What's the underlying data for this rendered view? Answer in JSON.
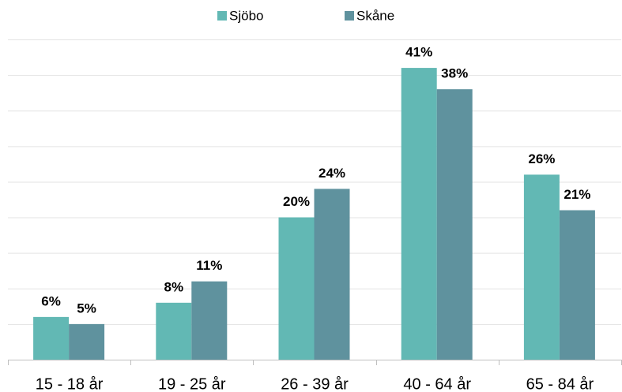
{
  "chart_data": {
    "type": "bar",
    "categories": [
      "15 - 18 år",
      "19 - 25 år",
      "26 - 39 år",
      "40 - 64 år",
      "65 - 84 år"
    ],
    "series": [
      {
        "name": "Sjöbo",
        "color": "#62b8b4",
        "values": [
          6,
          8,
          20,
          41,
          26
        ],
        "value_labels": [
          "6%",
          "8%",
          "20%",
          "41%",
          "26%"
        ]
      },
      {
        "name": "Skåne",
        "color": "#5f929e",
        "values": [
          5,
          11,
          24,
          38,
          21
        ],
        "value_labels": [
          "5%",
          "11%",
          "24%",
          "38%",
          "21%"
        ]
      }
    ],
    "ylim": [
      0,
      45
    ],
    "yticks": [
      0,
      5,
      10,
      15,
      20,
      25,
      30,
      35,
      40,
      45
    ],
    "grid": true,
    "legend": "top"
  }
}
